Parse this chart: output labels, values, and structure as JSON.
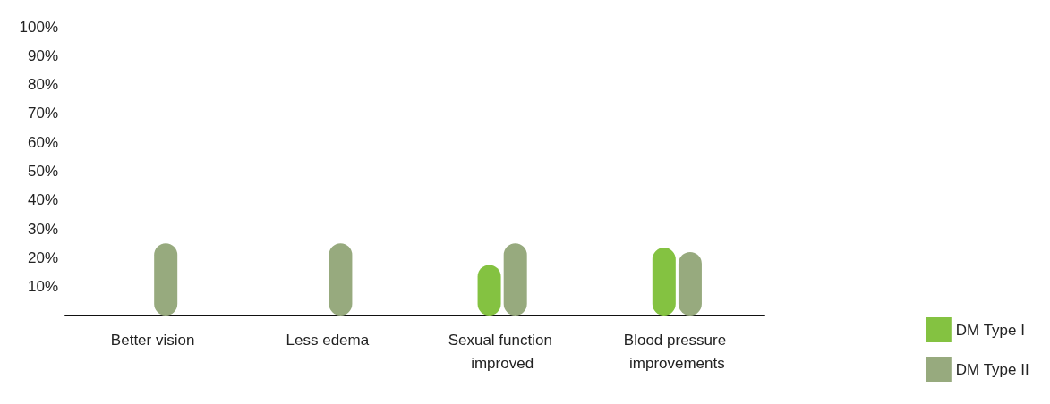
{
  "chart_data": {
    "type": "bar",
    "categories": [
      "Better vision",
      "Less edema",
      "Sexual function improved",
      "Blood pressure improvements"
    ],
    "series": [
      {
        "name": "DM Type I",
        "color": "#84c241",
        "values": [
          null,
          null,
          17.5,
          23.5
        ]
      },
      {
        "name": "DM Type II",
        "color": "#97aa7e",
        "values": [
          25,
          25,
          25,
          22
        ]
      }
    ],
    "ylim": [
      0,
      100
    ],
    "yticks": [
      {
        "value": 10,
        "label": "10%"
      },
      {
        "value": 20,
        "label": "20%"
      },
      {
        "value": 30,
        "label": "30%"
      },
      {
        "value": 40,
        "label": "40%"
      },
      {
        "value": 50,
        "label": "50%"
      },
      {
        "value": 60,
        "label": "60%"
      },
      {
        "value": 70,
        "label": "70%"
      },
      {
        "value": 80,
        "label": "80%"
      },
      {
        "value": 90,
        "label": "90%"
      },
      {
        "value": 100,
        "label": "100%"
      }
    ],
    "grid": false,
    "legend": "bottom right"
  }
}
